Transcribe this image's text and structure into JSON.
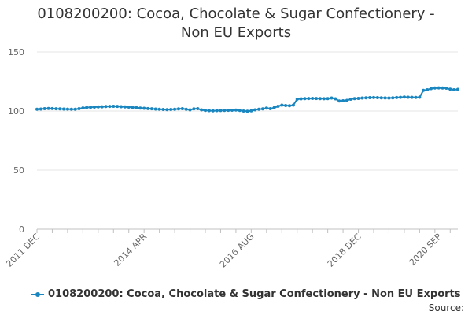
{
  "colors": {
    "series": "#1a86c0",
    "grid": "#e6e6e6",
    "axis": "#c0c0c0",
    "text": "#333333"
  },
  "chart_data": {
    "type": "line",
    "title": "0108200200: Cocoa, Chocolate & Sugar Confectionery - Non EU Exports",
    "title_lines": [
      "0108200200: Cocoa, Chocolate & Sugar Confectionery -",
      "Non EU Exports"
    ],
    "xlabel": "",
    "ylabel": "",
    "ylim": [
      0,
      150
    ],
    "yticks": [
      0,
      50,
      100,
      150
    ],
    "grid": true,
    "legend_position": "bottom",
    "x_tick_labels": [
      {
        "label": "2011 DEC",
        "index": 0
      },
      {
        "label": "2014 APR",
        "index": 28
      },
      {
        "label": "2016 AUG",
        "index": 56
      },
      {
        "label": "2018 DEC",
        "index": 84
      },
      {
        "label": "2020 SEP",
        "index": 105
      }
    ],
    "x_minor_step": 4,
    "series": [
      {
        "name": "0108200200: Cocoa, Chocolate & Sugar Confectionery - Non EU Exports",
        "values": [
          101.5,
          101.7,
          102.0,
          102.2,
          102.1,
          101.9,
          101.8,
          101.7,
          101.6,
          101.5,
          101.5,
          102.0,
          102.6,
          103.0,
          103.2,
          103.3,
          103.5,
          103.6,
          103.8,
          103.9,
          104.0,
          103.9,
          103.7,
          103.5,
          103.3,
          103.1,
          102.8,
          102.5,
          102.3,
          102.1,
          101.9,
          101.7,
          101.5,
          101.3,
          101.2,
          101.3,
          101.5,
          101.8,
          102.0,
          101.5,
          101.0,
          101.8,
          102.0,
          101.0,
          100.5,
          100.3,
          100.2,
          100.3,
          100.4,
          100.5,
          100.6,
          100.7,
          100.8,
          100.5,
          100.0,
          99.8,
          100.2,
          101.0,
          101.5,
          101.8,
          102.5,
          102.0,
          102.8,
          104.0,
          105.0,
          104.7,
          104.5,
          105.0,
          110.0,
          110.3,
          110.5,
          110.6,
          110.7,
          110.6,
          110.5,
          110.4,
          110.5,
          111.0,
          110.3,
          108.5,
          108.7,
          109.0,
          110.0,
          110.5,
          110.7,
          111.0,
          111.2,
          111.3,
          111.4,
          111.3,
          111.2,
          111.1,
          111.0,
          111.2,
          111.4,
          111.6,
          111.8,
          111.7,
          111.6,
          111.5,
          111.7,
          117.5,
          118.0,
          119.0,
          119.5,
          119.6,
          119.5,
          119.3,
          118.5,
          118.0,
          118.3
        ]
      }
    ]
  },
  "legend": {
    "label": "0108200200: Cocoa, Chocolate & Sugar Confectionery - Non EU Exports"
  },
  "footer": {
    "source": "Source:"
  }
}
